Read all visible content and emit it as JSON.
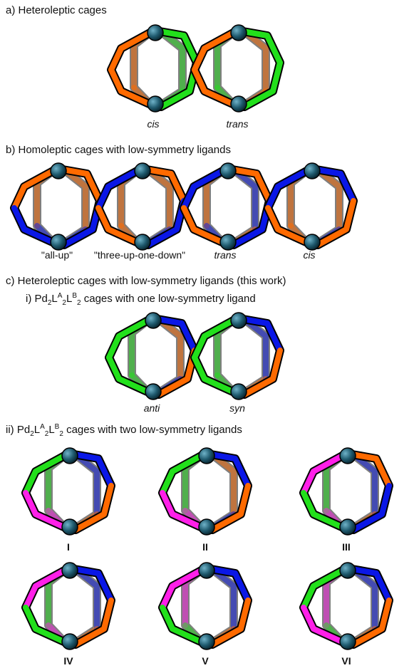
{
  "sections": {
    "a": {
      "title": "a) Heteroleptic cages"
    },
    "b": {
      "title": "b) Homoleptic cages with low-symmetry ligands"
    },
    "c": {
      "title": "c) Heteroleptic cages with low-symmetry ligands (this work)"
    },
    "ci": {
      "prefix": "i) Pd",
      "mid1": "L",
      "mid2": "L",
      "suffix": " cages with one low-symmetry ligand",
      "sub2a": "2",
      "supA": "A",
      "sub2b": "2",
      "supB": "B",
      "sub2c": "2"
    },
    "cii": {
      "prefix": "ii) Pd",
      "mid1": "L",
      "mid2": "L",
      "suffix": " cages with two low-symmetry ligands",
      "sub2a": "2",
      "supA": "A",
      "sub2b": "2",
      "supB": "B",
      "sub2c": "2"
    }
  },
  "colors": {
    "orange": "#ff6a00",
    "green": "#22e01b",
    "blue": "#0a17e6",
    "magenta": "#ff1fe8",
    "pd": "#1f5a6e",
    "outline": "#000000"
  },
  "cages": [
    {
      "caption": "cis",
      "italic": true,
      "bold": false,
      "front_left": [
        "orange",
        "orange"
      ],
      "front_right": [
        "green",
        "green"
      ],
      "back_left": [
        "orange",
        "orange"
      ],
      "back_right": [
        "green",
        "green"
      ]
    },
    {
      "caption": "trans",
      "italic": true,
      "bold": false,
      "front_left": [
        "orange",
        "orange"
      ],
      "front_right": [
        "green",
        "green"
      ],
      "back_left": [
        "green",
        "green"
      ],
      "back_right": [
        "orange",
        "orange"
      ]
    },
    {
      "caption": "\"all-up\"",
      "italic": false,
      "bold": false,
      "front_left": [
        "orange",
        "blue"
      ],
      "front_right": [
        "orange",
        "blue"
      ],
      "back_left": [
        "orange",
        "blue"
      ],
      "back_right": [
        "orange",
        "blue"
      ]
    },
    {
      "caption": "\"three-up-one-down\"",
      "italic": false,
      "bold": false,
      "front_left": [
        "blue",
        "orange"
      ],
      "front_right": [
        "orange",
        "blue"
      ],
      "back_left": [
        "orange",
        "orange"
      ],
      "back_right": [
        "orange",
        "blue"
      ]
    },
    {
      "caption": "trans",
      "italic": true,
      "bold": false,
      "front_left": [
        "blue",
        "orange"
      ],
      "front_right": [
        "orange",
        "blue"
      ],
      "back_left": [
        "orange",
        "blue"
      ],
      "back_right": [
        "blue",
        "orange"
      ]
    },
    {
      "caption": "cis",
      "italic": true,
      "bold": false,
      "front_left": [
        "blue",
        "orange"
      ],
      "front_right": [
        "blue",
        "orange"
      ],
      "back_left": [
        "orange",
        "orange"
      ],
      "back_right": [
        "orange",
        "blue"
      ]
    },
    {
      "caption": "anti",
      "italic": true,
      "bold": false,
      "front_left": [
        "green",
        "green"
      ],
      "front_right": [
        "blue",
        "orange"
      ],
      "back_left": [
        "green",
        "green"
      ],
      "back_right": [
        "orange",
        "blue"
      ]
    },
    {
      "caption": "syn",
      "italic": true,
      "bold": false,
      "front_left": [
        "green",
        "green"
      ],
      "front_right": [
        "blue",
        "orange"
      ],
      "back_left": [
        "green",
        "green"
      ],
      "back_right": [
        "blue",
        "orange"
      ]
    },
    {
      "caption": "I",
      "italic": false,
      "bold": true,
      "front_left": [
        "green",
        "magenta"
      ],
      "front_right": [
        "blue",
        "orange"
      ],
      "back_left": [
        "green",
        "magenta"
      ],
      "back_right": [
        "blue",
        "orange"
      ]
    },
    {
      "caption": "II",
      "italic": false,
      "bold": true,
      "front_left": [
        "green",
        "magenta"
      ],
      "front_right": [
        "blue",
        "orange"
      ],
      "back_left": [
        "green",
        "magenta"
      ],
      "back_right": [
        "orange",
        "blue"
      ]
    },
    {
      "caption": "III",
      "italic": false,
      "bold": true,
      "front_left": [
        "magenta",
        "green"
      ],
      "front_right": [
        "orange",
        "blue"
      ],
      "back_left": [
        "green",
        "magenta"
      ],
      "back_right": [
        "blue",
        "orange"
      ]
    },
    {
      "caption": "IV",
      "italic": false,
      "bold": true,
      "front_left": [
        "magenta",
        "green"
      ],
      "front_right": [
        "blue",
        "orange"
      ],
      "back_left": [
        "green",
        "magenta"
      ],
      "back_right": [
        "blue",
        "orange"
      ]
    },
    {
      "caption": "V",
      "italic": false,
      "bold": true,
      "front_left": [
        "magenta",
        "green"
      ],
      "front_right": [
        "blue",
        "orange"
      ],
      "back_left": [
        "magenta",
        "green"
      ],
      "back_right": [
        "blue",
        "orange"
      ]
    },
    {
      "caption": "VI",
      "italic": false,
      "bold": true,
      "front_left": [
        "green",
        "magenta"
      ],
      "front_right": [
        "blue",
        "orange"
      ],
      "back_left": [
        "magenta",
        "green"
      ],
      "back_right": [
        "blue",
        "orange"
      ]
    }
  ]
}
